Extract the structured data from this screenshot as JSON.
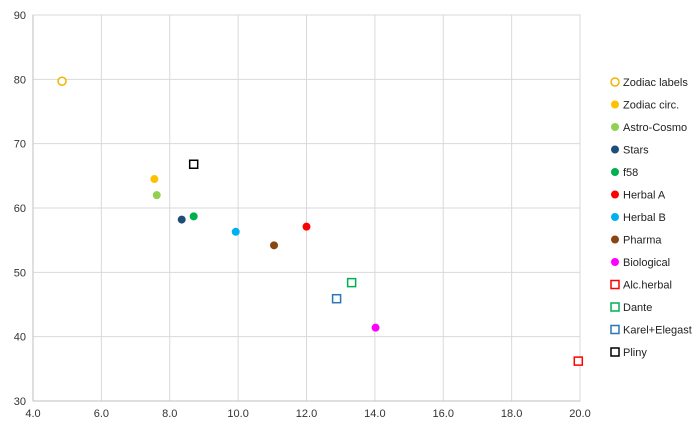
{
  "chart_data": {
    "type": "scatter",
    "title": "",
    "xlabel": "",
    "ylabel": "",
    "xlim": [
      4.0,
      20.0
    ],
    "ylim": [
      30,
      90
    ],
    "xticks": [
      "4.0",
      "6.0",
      "8.0",
      "10.0",
      "12.0",
      "14.0",
      "16.0",
      "18.0",
      "20.0"
    ],
    "yticks": [
      "30",
      "40",
      "50",
      "60",
      "70",
      "80",
      "90"
    ],
    "grid": true,
    "legend_position": "right",
    "series": [
      {
        "name": "Zodiac labels",
        "marker": "circle-open",
        "color": "#F2B400",
        "x": 4.85,
        "y": 79.7
      },
      {
        "name": "Zodiac circ.",
        "marker": "circle",
        "color": "#FFC000",
        "x": 7.55,
        "y": 64.5
      },
      {
        "name": "Astro-Cosmo",
        "marker": "circle",
        "color": "#92D050",
        "x": 7.62,
        "y": 62.0
      },
      {
        "name": "Stars",
        "marker": "circle",
        "color": "#1F4E79",
        "x": 8.35,
        "y": 58.2
      },
      {
        "name": "f58",
        "marker": "circle",
        "color": "#00B050",
        "x": 8.7,
        "y": 58.7
      },
      {
        "name": "Herbal A",
        "marker": "circle",
        "color": "#FF0000",
        "x": 12.0,
        "y": 57.1
      },
      {
        "name": "Herbal B",
        "marker": "circle",
        "color": "#00B0F0",
        "x": 9.93,
        "y": 56.3
      },
      {
        "name": "Pharma",
        "marker": "circle",
        "color": "#8B4513",
        "x": 11.05,
        "y": 54.2
      },
      {
        "name": "Biological",
        "marker": "circle",
        "color": "#FF00FF",
        "x": 14.02,
        "y": 41.4
      },
      {
        "name": "Alc.herbal",
        "marker": "square-open",
        "color": "#FF0000",
        "x": 19.95,
        "y": 36.2
      },
      {
        "name": "Dante",
        "marker": "square-open",
        "color": "#00B050",
        "x": 13.32,
        "y": 48.4
      },
      {
        "name": "Karel+Elegast",
        "marker": "square-open",
        "color": "#2E75B6",
        "x": 12.88,
        "y": 45.9
      },
      {
        "name": "Pliny",
        "marker": "square-open",
        "color": "#000000",
        "x": 8.7,
        "y": 66.8
      }
    ]
  }
}
